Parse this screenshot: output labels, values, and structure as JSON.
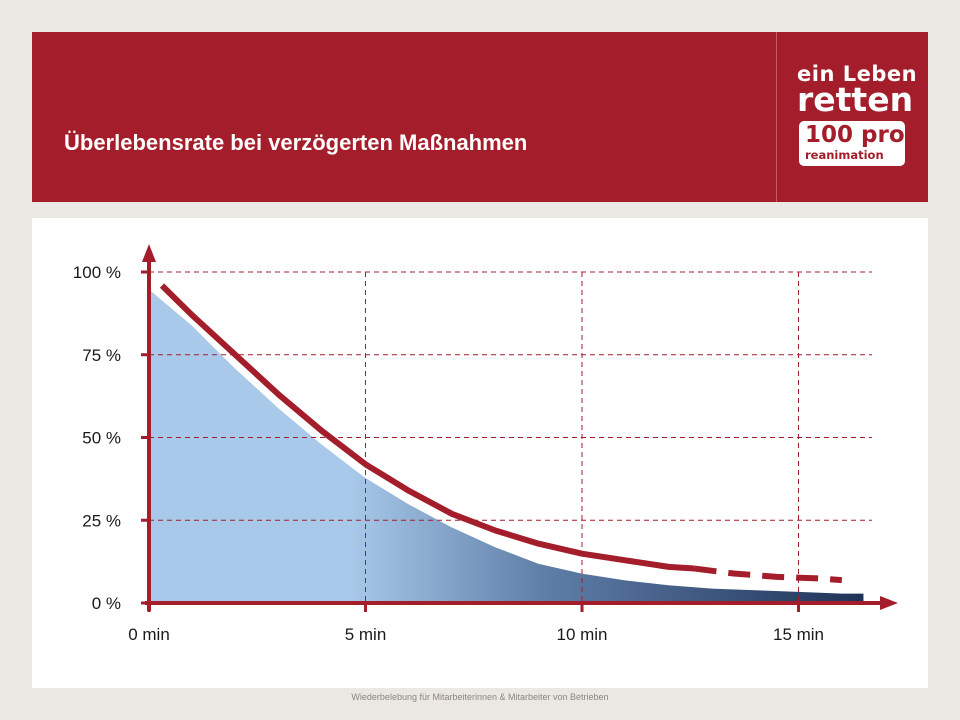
{
  "header": {
    "title": "Überlebensrate bei verzögerten Maßnahmen"
  },
  "logo": {
    "line1": "ein Leben",
    "line2": "retten",
    "box_line1": "100 pro",
    "box_line2": "reanimation",
    "icon": "heart-icon"
  },
  "footer": {
    "text": "Wiederbelebung für Mitarbeiterinnen & Mitarbeiter von Betrieben"
  },
  "colors": {
    "brand_red": "#a31d2a",
    "grid": "#a31d2a",
    "fill_light": "#a9c9ea",
    "fill_dark": "#1f3358"
  },
  "chart_data": {
    "type": "area",
    "title": "",
    "xlabel": "",
    "ylabel": "",
    "x_ticks": [
      0,
      5,
      10,
      15
    ],
    "x_tick_labels": [
      "0 min",
      "5 min",
      "10 min",
      "15 min"
    ],
    "y_ticks": [
      0,
      25,
      50,
      75,
      100
    ],
    "y_tick_labels": [
      "0 %",
      "25 %",
      "50 %",
      "75 %",
      "100 %"
    ],
    "xlim": [
      0,
      16.5
    ],
    "ylim": [
      0,
      100
    ],
    "grid": true,
    "series": [
      {
        "x": [
          0.3,
          1,
          2,
          3,
          4,
          5,
          6,
          7,
          8,
          9,
          10,
          11,
          12,
          12.6
        ],
        "values": [
          95,
          86,
          74,
          62,
          51,
          41,
          33,
          26,
          21,
          17,
          14,
          12,
          10,
          9.5
        ]
      },
      {
        "style": "dashed",
        "x": [
          12.6,
          13.5,
          14.5,
          15.5,
          16
        ],
        "values": [
          9.5,
          8,
          7,
          6.5,
          6
        ]
      }
    ],
    "area": {
      "x": [
        0,
        1,
        2,
        3,
        4,
        5,
        6,
        7,
        8,
        9,
        10,
        11,
        12,
        13,
        14,
        15,
        16,
        16.5
      ],
      "values": [
        95,
        84,
        71,
        59,
        48,
        38,
        30,
        23,
        17,
        12,
        9,
        7,
        5.5,
        4.5,
        4,
        3.5,
        3,
        3
      ]
    }
  }
}
